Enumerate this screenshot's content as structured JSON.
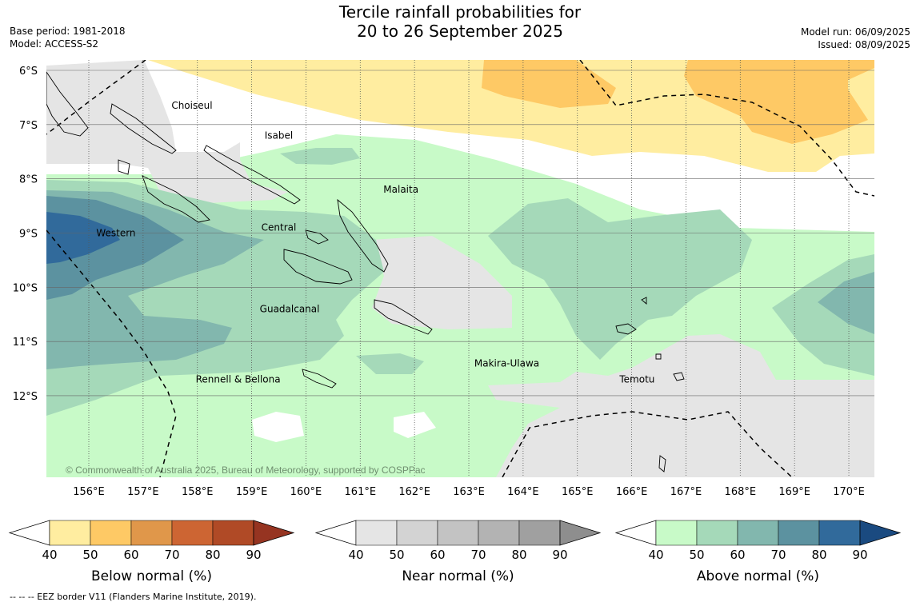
{
  "title": {
    "line1": "Tercile rainfall probabilities for",
    "line2": "20 to 26 September 2025"
  },
  "meta": {
    "base_period": "Base period: 1981-2018",
    "model": "Model: ACCESS-S2",
    "model_run": "Model run: 06/09/2025",
    "issued": "Issued: 08/09/2025"
  },
  "map": {
    "lon_range": [
      155.2,
      170.5
    ],
    "lat_range": [
      -13.5,
      -5.8
    ],
    "lat_ticks": [
      {
        "value": -6,
        "label": "6°S"
      },
      {
        "value": -7,
        "label": "7°S"
      },
      {
        "value": -8,
        "label": "8°S"
      },
      {
        "value": -9,
        "label": "9°S"
      },
      {
        "value": -10,
        "label": "10°S"
      },
      {
        "value": -11,
        "label": "11°S"
      },
      {
        "value": -12,
        "label": "12°S"
      }
    ],
    "lon_ticks": [
      {
        "value": 156,
        "label": "156°E"
      },
      {
        "value": 157,
        "label": "157°E"
      },
      {
        "value": 158,
        "label": "158°E"
      },
      {
        "value": 159,
        "label": "159°E"
      },
      {
        "value": 160,
        "label": "160°E"
      },
      {
        "value": 161,
        "label": "161°E"
      },
      {
        "value": 162,
        "label": "162°E"
      },
      {
        "value": 163,
        "label": "163°E"
      },
      {
        "value": 164,
        "label": "164°E"
      },
      {
        "value": 165,
        "label": "165°E"
      },
      {
        "value": 166,
        "label": "166°E"
      },
      {
        "value": 167,
        "label": "167°E"
      },
      {
        "value": 168,
        "label": "168°E"
      },
      {
        "value": 169,
        "label": "169°E"
      },
      {
        "value": 170,
        "label": "170°E"
      }
    ],
    "province_labels": [
      {
        "text": "Choiseul",
        "lon": 157.9,
        "lat": -6.65
      },
      {
        "text": "Isabel",
        "lon": 159.5,
        "lat": -7.2
      },
      {
        "text": "Malaita",
        "lon": 161.75,
        "lat": -8.2
      },
      {
        "text": "Western",
        "lon": 156.5,
        "lat": -9.0
      },
      {
        "text": "Central",
        "lon": 159.5,
        "lat": -8.9
      },
      {
        "text": "Guadalcanal",
        "lon": 159.7,
        "lat": -10.4
      },
      {
        "text": "Makira-Ulawa",
        "lon": 163.7,
        "lat": -11.4
      },
      {
        "text": "Rennell & Bellona",
        "lon": 158.75,
        "lat": -11.7
      },
      {
        "text": "Temotu",
        "lon": 166.1,
        "lat": -11.7
      }
    ],
    "copyright": "© Commonwealth of Australia 2025, Bureau of Meteorology, supported by COSPPac"
  },
  "legends": [
    {
      "name": "Below normal (%)",
      "ticks": [
        "40",
        "50",
        "60",
        "70",
        "80",
        "90"
      ],
      "colors": [
        "#ffeda0",
        "#fec965",
        "#e0974a",
        "#cd6533",
        "#b04a26",
        "#963421"
      ]
    },
    {
      "name": "Near normal (%)",
      "ticks": [
        "40",
        "50",
        "60",
        "70",
        "80",
        "90"
      ],
      "colors": [
        "#e5e5e5",
        "#d3d3d3",
        "#c3c3c3",
        "#b3b3b3",
        "#a0a0a0",
        "#8e8e8e"
      ]
    },
    {
      "name": "Above normal (%)",
      "ticks": [
        "40",
        "50",
        "60",
        "70",
        "80",
        "90"
      ],
      "colors": [
        "#c8fac8",
        "#a5d9b9",
        "#82b7ae",
        "#5c92a0",
        "#316a9b",
        "#1a4a80"
      ]
    }
  ],
  "footnote": "-- -- -- EEZ border V11 (Flanders Marine Institute, 2019)."
}
